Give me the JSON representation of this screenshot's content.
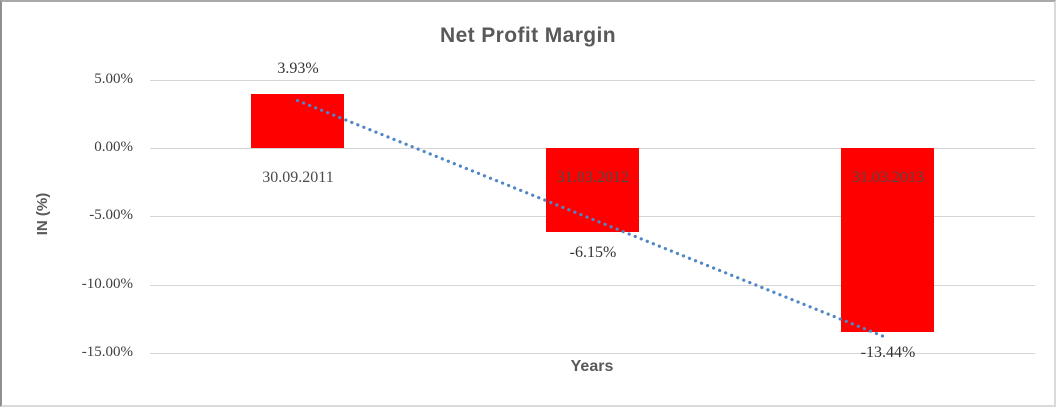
{
  "chart_data": {
    "type": "bar",
    "title": "Net Profit Margin",
    "xlabel": "Years",
    "ylabel": "IN (%)",
    "categories": [
      "30.09.2011",
      "31.03.2012",
      "31.03.2013"
    ],
    "values": [
      3.93,
      -6.15,
      -13.44
    ],
    "value_labels": [
      "3.93%",
      "-6.15%",
      "-13.44%"
    ],
    "y_ticks": [
      {
        "label": "5.00%",
        "value": 5
      },
      {
        "label": "0.00%",
        "value": 0
      },
      {
        "label": "-5.00%",
        "value": -5
      },
      {
        "label": "-10.00%",
        "value": -10
      },
      {
        "label": "-15.00%",
        "value": -15
      }
    ],
    "ylim": [
      -15,
      5
    ],
    "grid": true,
    "legend_position": "none",
    "bar_color": "#ff0000",
    "trendline": {
      "style": "dotted",
      "color": "#4f86c6",
      "start_value": 3.47,
      "end_value": -13.9
    }
  },
  "colors": {
    "title_text": "#595959",
    "axis_title_text": "#595959",
    "tick_text": "#3f3f3f",
    "data_label_text": "#333333",
    "gridline": "#d6d6d6",
    "background": "#ffffff"
  }
}
